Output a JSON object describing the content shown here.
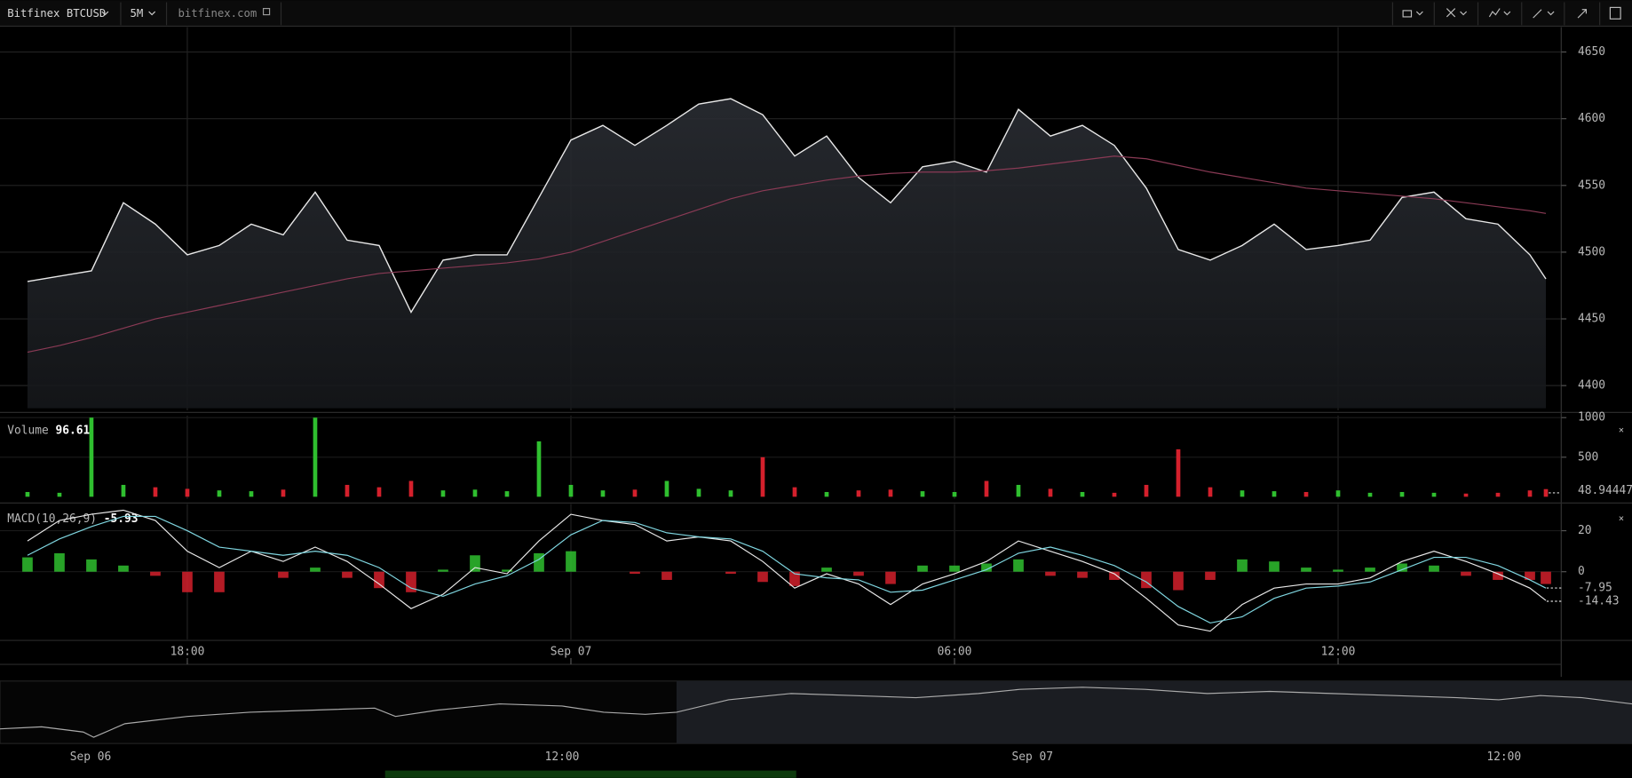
{
  "toolbar": {
    "symbol": "Bitfinex BTCUSD",
    "interval": "5M",
    "source": "bitfinex.com"
  },
  "chart_data": [
    {
      "type": "line",
      "x": [
        3.5,
        4,
        4.5,
        5,
        5.5,
        6,
        6.5,
        7,
        7.5,
        8,
        8.5,
        9,
        9.5,
        10,
        10.5,
        11,
        11.5,
        12,
        12.5,
        13,
        13.5,
        14,
        14.5,
        15,
        15.5,
        16,
        16.5,
        17,
        17.5,
        18,
        18.5,
        19,
        19.5,
        20,
        20.5,
        21,
        21.5,
        22,
        22.5,
        23,
        23.5,
        24,
        24.5,
        25,
        25.5,
        26,
        26.5,
        27,
        27.25
      ],
      "series": [
        {
          "color": "#e8e8e8",
          "values": [
            4478,
            4482,
            4486,
            4537,
            4521,
            4498,
            4505,
            4521,
            4513,
            4545,
            4509,
            4505,
            4455,
            4494,
            4498,
            4498,
            4541,
            4584,
            4595,
            4580,
            4595,
            4611,
            4615,
            4603,
            4572,
            4587,
            4556,
            4537,
            4564,
            4568,
            4560,
            4607,
            4587,
            4595,
            4580,
            4548,
            4502,
            4494,
            4505,
            4521,
            4502,
            4505,
            4509,
            4541,
            4545,
            4525,
            4521,
            4498,
            4480
          ]
        },
        {
          "color": "#8a3a55",
          "values": [
            4425,
            4430,
            4436,
            4443,
            4450,
            4455,
            4460,
            4465,
            4470,
            4475,
            4480,
            4484,
            4486,
            4488,
            4490,
            4492,
            4495,
            4500,
            4508,
            4516,
            4524,
            4532,
            4540,
            4546,
            4550,
            4554,
            4557,
            4559,
            4560,
            4560,
            4561,
            4563,
            4566,
            4569,
            4572,
            4570,
            4565,
            4560,
            4556,
            4552,
            4548,
            4546,
            4544,
            4542,
            4540,
            4537,
            4534,
            4531,
            4529
          ]
        }
      ],
      "xlim": [
        3.07,
        27.49
      ],
      "xticks": [
        {
          "value": 6,
          "label": "18:00"
        },
        {
          "value": 12,
          "label": "Sep 07"
        },
        {
          "value": 18,
          "label": "06:00"
        },
        {
          "value": 24,
          "label": "12:00"
        }
      ],
      "ylim": [
        4383,
        4667
      ],
      "yticks": [
        4400,
        4450,
        4500,
        4550,
        4600,
        4650
      ],
      "grid": true
    },
    {
      "type": "bar",
      "title": "Volume",
      "current": 96.61,
      "x": [
        3.5,
        4,
        4.5,
        5,
        5.5,
        6,
        6.5,
        7,
        7.5,
        8,
        8.5,
        9,
        9.5,
        10,
        10.5,
        11,
        11.5,
        12,
        12.5,
        13,
        13.5,
        14,
        14.5,
        15,
        15.5,
        16,
        16.5,
        17,
        17.5,
        18,
        18.5,
        19,
        19.5,
        20,
        20.5,
        21,
        21.5,
        22,
        22.5,
        23,
        23.5,
        24,
        24.5,
        25,
        25.5,
        26,
        26.5,
        27,
        27.25
      ],
      "values": [
        60,
        50,
        1000,
        150,
        120,
        100,
        80,
        70,
        90,
        1000,
        150,
        120,
        200,
        80,
        90,
        70,
        700,
        150,
        80,
        90,
        200,
        100,
        80,
        500,
        120,
        60,
        80,
        90,
        70,
        60,
        200,
        150,
        100,
        60,
        50,
        150,
        600,
        120,
        80,
        70,
        60,
        80,
        50,
        60,
        50,
        40,
        50,
        80,
        96.61
      ],
      "up_color": "#2fbf2f",
      "down_color": "#d4202c",
      "ylim": [
        0,
        1000
      ],
      "yticks": [
        500,
        1000
      ],
      "marker": 48.944477
    },
    {
      "type": "macd",
      "title": "MACD(10,26,9)",
      "current": -5.93,
      "x": [
        3.5,
        4,
        4.5,
        5,
        5.5,
        6,
        6.5,
        7,
        7.5,
        8,
        8.5,
        9,
        9.5,
        10,
        10.5,
        11,
        11.5,
        12,
        12.5,
        13,
        13.5,
        14,
        14.5,
        15,
        15.5,
        16,
        16.5,
        17,
        17.5,
        18,
        18.5,
        19,
        19.5,
        20,
        20.5,
        21,
        21.5,
        22,
        22.5,
        23,
        23.5,
        24,
        24.5,
        25,
        25.5,
        26,
        26.5,
        27,
        27.25
      ],
      "series": [
        {
          "color": "#e8e8e8",
          "values": [
            15,
            25,
            28,
            30,
            25,
            10,
            2,
            10,
            5,
            12,
            5,
            -6,
            -18,
            -11,
            2,
            -1,
            15,
            28,
            25,
            23,
            15,
            17,
            15,
            5,
            -8,
            -1,
            -6,
            -16,
            -6,
            -1,
            5,
            15,
            10,
            5,
            -1,
            -13,
            -26,
            -29,
            -16,
            -8,
            -6,
            -6,
            -3,
            5,
            10,
            5,
            -1,
            -8,
            -14
          ]
        },
        {
          "color": "#7fd6e0",
          "values": [
            8,
            16,
            22,
            27,
            27,
            20,
            12,
            10,
            8,
            10,
            8,
            2,
            -8,
            -12,
            -6,
            -2,
            6,
            18,
            25,
            24,
            19,
            17,
            16,
            10,
            -1,
            -3,
            -4,
            -10,
            -9,
            -4,
            1,
            9,
            12,
            8,
            3,
            -5,
            -17,
            -25,
            -22,
            -13,
            -8,
            -7,
            -5,
            1,
            7,
            7,
            3,
            -4,
            -8
          ]
        }
      ],
      "histogram": [
        7,
        9,
        6,
        3,
        -2,
        -10,
        -10,
        0,
        -3,
        2,
        -3,
        -8,
        -10,
        1,
        8,
        1,
        9,
        10,
        0,
        -1,
        -4,
        0,
        -1,
        -5,
        -7,
        2,
        -2,
        -6,
        3,
        3,
        4,
        6,
        -2,
        -3,
        -4,
        -8,
        -9,
        -4,
        6,
        5,
        2,
        1,
        2,
        4,
        3,
        -2,
        -4,
        -4,
        -6
      ],
      "up_color": "#2fbf2f",
      "down_color": "#d4202c",
      "ylim": [
        -32,
        32
      ],
      "yticks": [
        0,
        20
      ],
      "markers": [
        -7.95,
        -14.43
      ]
    }
  ],
  "navigator": {
    "ticks": [
      "Sep 06",
      "12:00",
      "Sep 07",
      "12:00"
    ]
  }
}
